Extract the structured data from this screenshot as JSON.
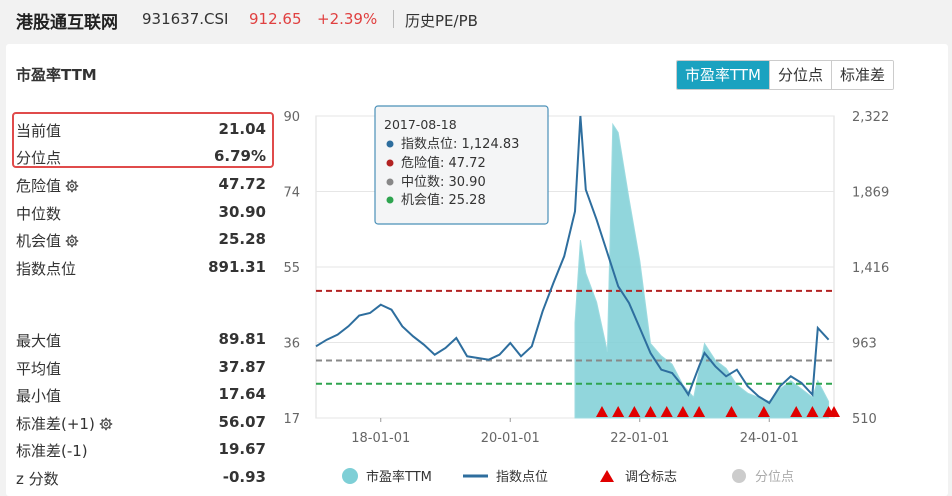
{
  "header": {
    "title": "港股通互联网",
    "code": "931637.CSI",
    "price": "912.65",
    "change": "+2.39%",
    "history_label": "历史PE/PB"
  },
  "panel": {
    "title": "市盈率TTM",
    "tabs": [
      {
        "label": "市盈率TTM",
        "active": true
      },
      {
        "label": "分位点",
        "active": false
      },
      {
        "label": "标准差",
        "active": false
      }
    ]
  },
  "stats": {
    "current": {
      "label": "当前值",
      "value": "21.04"
    },
    "percentile": {
      "label": "分位点",
      "value": "6.79%"
    },
    "danger": {
      "label": "危险值",
      "value": "47.72"
    },
    "median": {
      "label": "中位数",
      "value": "30.90"
    },
    "opportunity": {
      "label": "机会值",
      "value": "25.28"
    },
    "index_point": {
      "label": "指数点位",
      "value": "891.31"
    },
    "max": {
      "label": "最大值",
      "value": "89.81"
    },
    "mean": {
      "label": "平均值",
      "value": "37.87"
    },
    "min": {
      "label": "最小值",
      "value": "17.64"
    },
    "std_plus": {
      "label": "标准差(+1)",
      "value": "56.07"
    },
    "std_minus": {
      "label": "标准差(-1)",
      "value": "19.67"
    },
    "zscore": {
      "label": "z 分数",
      "value": "-0.93"
    }
  },
  "tooltip": {
    "date": "2017-08-18",
    "items": [
      {
        "label": "指数点位: 1,124.83",
        "color": "#2e6e9e"
      },
      {
        "label": "危险值: 47.72",
        "color": "#b22222"
      },
      {
        "label": "中位数: 30.90",
        "color": "#888888"
      },
      {
        "label": "机会值: 25.28",
        "color": "#2ea44f"
      }
    ]
  },
  "legend": {
    "pe": "市盈率TTM",
    "index": "指数点位",
    "rebalance": "调仓标志",
    "percentile": "分位点"
  },
  "colors": {
    "accent": "#1aa2c0",
    "pe_fill": "#7ecfd6",
    "index_line": "#2e6e9e",
    "danger": "#b22222",
    "median": "#888888",
    "opportunity": "#2ea44f",
    "rise": "#e04040"
  },
  "chart_data": {
    "type": "line",
    "x_ticks": [
      "18-01-01",
      "20-01-01",
      "22-01-01",
      "24-01-01"
    ],
    "y_left": {
      "ticks": [
        "90",
        "74",
        "55",
        "36",
        "17"
      ],
      "range": [
        17,
        90
      ]
    },
    "y_right": {
      "ticks": [
        "2,322",
        "1,869",
        "1,416",
        "963",
        "510"
      ],
      "range": [
        510,
        2322
      ]
    },
    "reference_lines": [
      {
        "name": "危险值",
        "value": 47.72
      },
      {
        "name": "中位数",
        "value": 30.9
      },
      {
        "name": "机会值",
        "value": 25.28
      }
    ],
    "x_range": [
      "2017-01",
      "2025-01"
    ],
    "series": [
      {
        "name": "指数点位",
        "axis": "right",
        "x": [
          "2017-01",
          "2017-03",
          "2017-05",
          "2017-07",
          "2017-09",
          "2017-11",
          "2018-01",
          "2018-03",
          "2018-05",
          "2018-07",
          "2018-09",
          "2018-11",
          "2019-01",
          "2019-03",
          "2019-05",
          "2019-07",
          "2019-09",
          "2019-11",
          "2020-01",
          "2020-03",
          "2020-05",
          "2020-07",
          "2020-09",
          "2020-11",
          "2021-01",
          "2021-02",
          "2021-03",
          "2021-05",
          "2021-07",
          "2021-09",
          "2021-11",
          "2022-01",
          "2022-03",
          "2022-05",
          "2022-07",
          "2022-09",
          "2022-10",
          "2022-12",
          "2023-01",
          "2023-03",
          "2023-05",
          "2023-07",
          "2023-09",
          "2023-11",
          "2024-01",
          "2024-03",
          "2024-05",
          "2024-07",
          "2024-09",
          "2024-10",
          "2024-12"
        ],
        "values": [
          940,
          980,
          1010,
          1060,
          1124.83,
          1140,
          1190,
          1160,
          1060,
          1000,
          950,
          890,
          930,
          990,
          880,
          870,
          860,
          890,
          960,
          880,
          940,
          1150,
          1320,
          1480,
          1750,
          2322,
          1880,
          1700,
          1500,
          1300,
          1200,
          1050,
          900,
          800,
          780,
          700,
          650,
          820,
          900,
          820,
          760,
          800,
          700,
          640,
          600,
          700,
          760,
          720,
          650,
          1050,
          980
        ]
      },
      {
        "name": "市盈率TTM",
        "axis": "left",
        "x": [
          "2021-01",
          "2021-02",
          "2021-03",
          "2021-05",
          "2021-07",
          "2021-08",
          "2021-09",
          "2021-11",
          "2022-01",
          "2022-03",
          "2022-05",
          "2022-07",
          "2022-09",
          "2022-11",
          "2023-01",
          "2023-03",
          "2023-05",
          "2023-07",
          "2023-09",
          "2023-11",
          "2024-01",
          "2024-03",
          "2024-05",
          "2024-07",
          "2024-09",
          "2024-10",
          "2024-12"
        ],
        "values": [
          40,
          60,
          52,
          45,
          33,
          88,
          86,
          70,
          55,
          35,
          32,
          30,
          25,
          22,
          35,
          31,
          29,
          25,
          23,
          22,
          21,
          24,
          26,
          24,
          22,
          26,
          21
        ]
      }
    ],
    "rebalance_dates": [
      "2021-06",
      "2021-09",
      "2021-12",
      "2022-03",
      "2022-06",
      "2022-09",
      "2022-12",
      "2023-06",
      "2023-12",
      "2024-06",
      "2024-09",
      "2024-12",
      "2025-01"
    ]
  }
}
